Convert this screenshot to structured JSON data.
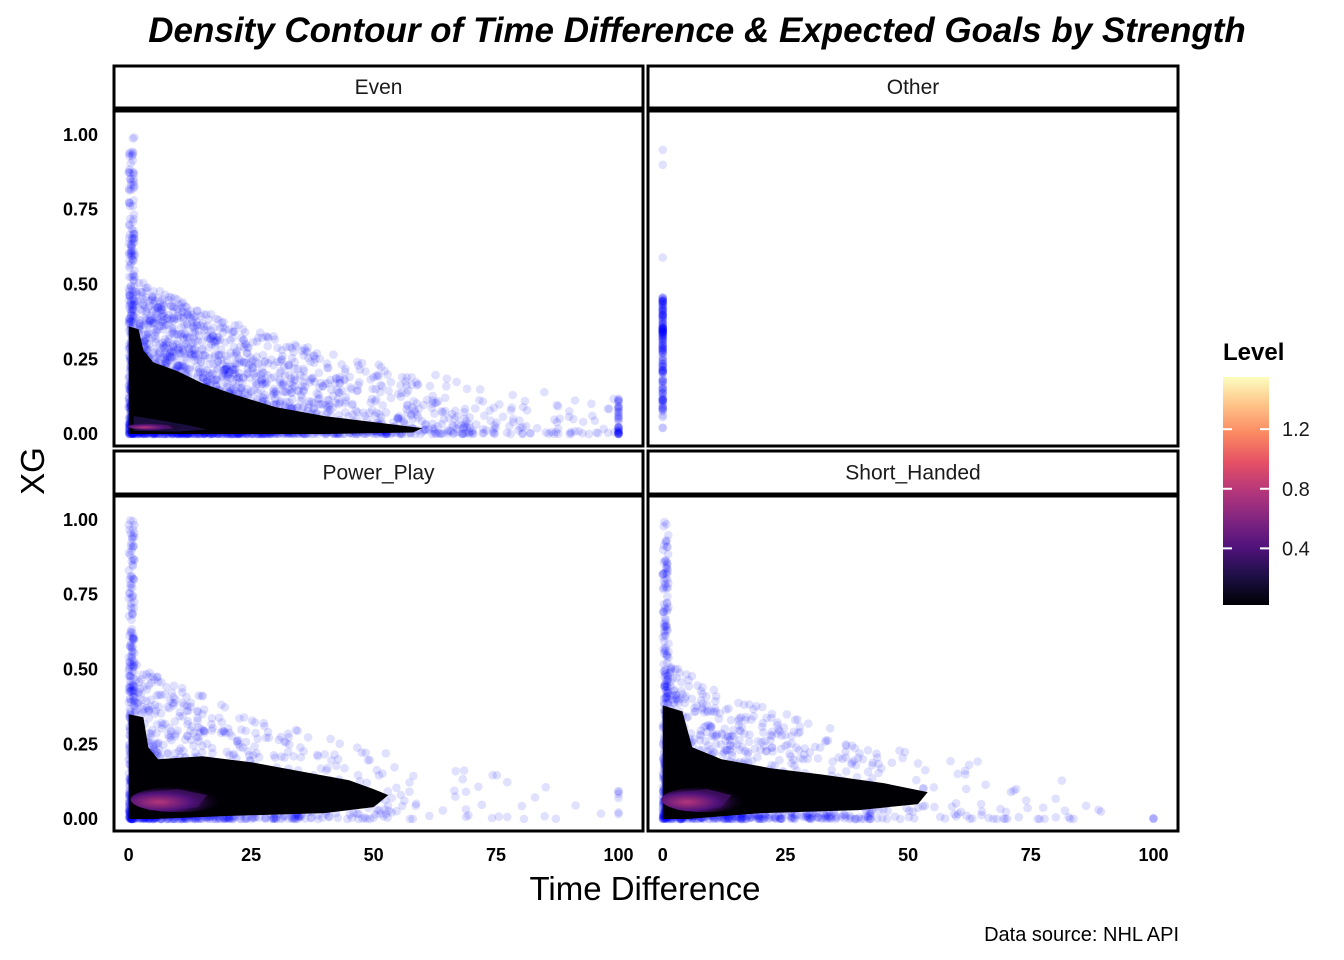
{
  "chart_data": {
    "type": "scatter",
    "title": "Density Contour of Time Difference & Expected Goals by Strength",
    "xlabel": "Time Difference",
    "ylabel": "XG",
    "caption": "Data source: NHL API",
    "xlim": [
      -3,
      105
    ],
    "ylim": [
      -0.04,
      1.08
    ],
    "x_ticks": [
      0,
      25,
      50,
      75,
      100
    ],
    "x_tick_labels": [
      "0",
      "25",
      "50",
      "75",
      "100"
    ],
    "y_ticks": [
      0,
      0.25,
      0.5,
      0.75,
      1.0
    ],
    "y_tick_labels": [
      "0.00",
      "0.25",
      "0.50",
      "0.75",
      "1.00"
    ],
    "point_color": "#0000ff",
    "point_opacity": 0.12,
    "panels": [
      {
        "name": "Even",
        "max_x": 100,
        "density_peak": 0.7,
        "contour_bands": [
          {
            "level": 0.02,
            "points": [
              [
                0,
                0.0
              ],
              [
                0,
                0.36
              ],
              [
                2,
                0.35
              ],
              [
                3,
                0.28
              ],
              [
                5,
                0.24
              ],
              [
                10,
                0.21
              ],
              [
                15,
                0.17
              ],
              [
                22,
                0.13
              ],
              [
                30,
                0.09
              ],
              [
                40,
                0.06
              ],
              [
                50,
                0.04
              ],
              [
                60,
                0.02
              ],
              [
                58,
                0.005
              ],
              [
                40,
                0.0
              ],
              [
                20,
                0.0
              ]
            ]
          },
          {
            "level": 0.06,
            "points": [
              [
                1,
                0.01
              ],
              [
                1,
                0.2
              ],
              [
                3,
                0.18
              ],
              [
                8,
                0.12
              ],
              [
                15,
                0.08
              ],
              [
                25,
                0.05
              ],
              [
                35,
                0.03
              ],
              [
                30,
                0.01
              ],
              [
                15,
                0.005
              ]
            ]
          },
          {
            "level": 0.3,
            "points": [
              [
                1,
                0.01
              ],
              [
                1,
                0.06
              ],
              [
                5,
                0.05
              ],
              [
                12,
                0.03
              ],
              [
                16,
                0.015
              ],
              [
                10,
                0.008
              ]
            ]
          },
          {
            "level": 0.6,
            "points": [
              [
                2,
                0.015
              ],
              [
                3,
                0.035
              ],
              [
                8,
                0.03
              ],
              [
                9,
                0.018
              ]
            ]
          }
        ]
      },
      {
        "name": "Other",
        "max_x": 1,
        "density_peak": 0,
        "contour_bands": []
      },
      {
        "name": "Power_Play",
        "max_x": 100,
        "density_peak": 0.55,
        "contour_bands": [
          {
            "level": 0.02,
            "points": [
              [
                0,
                0.0
              ],
              [
                0,
                0.35
              ],
              [
                3,
                0.34
              ],
              [
                4,
                0.24
              ],
              [
                6,
                0.2
              ],
              [
                15,
                0.21
              ],
              [
                25,
                0.19
              ],
              [
                35,
                0.16
              ],
              [
                45,
                0.13
              ],
              [
                50,
                0.1
              ],
              [
                53,
                0.08
              ],
              [
                50,
                0.04
              ],
              [
                40,
                0.02
              ],
              [
                20,
                0.01
              ],
              [
                5,
                0.0
              ]
            ]
          },
          {
            "level": 0.1,
            "points": [
              [
                2,
                0.01
              ],
              [
                2,
                0.16
              ],
              [
                10,
                0.15
              ],
              [
                25,
                0.13
              ],
              [
                38,
                0.1
              ],
              [
                40,
                0.06
              ],
              [
                30,
                0.03
              ],
              [
                15,
                0.02
              ]
            ]
          },
          {
            "level": 0.4,
            "points": [
              [
                4,
                0.03
              ],
              [
                4,
                0.09
              ],
              [
                10,
                0.1
              ],
              [
                16,
                0.08
              ],
              [
                14,
                0.04
              ],
              [
                8,
                0.03
              ]
            ]
          }
        ]
      },
      {
        "name": "Short_Handed",
        "max_x": 100,
        "density_peak": 0.45,
        "contour_bands": [
          {
            "level": 0.02,
            "points": [
              [
                0,
                0.0
              ],
              [
                0,
                0.38
              ],
              [
                4,
                0.36
              ],
              [
                6,
                0.24
              ],
              [
                12,
                0.2
              ],
              [
                22,
                0.17
              ],
              [
                32,
                0.15
              ],
              [
                45,
                0.12
              ],
              [
                54,
                0.09
              ],
              [
                52,
                0.05
              ],
              [
                40,
                0.03
              ],
              [
                20,
                0.02
              ],
              [
                5,
                0.0
              ]
            ]
          },
          {
            "level": 0.1,
            "points": [
              [
                2,
                0.01
              ],
              [
                2,
                0.18
              ],
              [
                10,
                0.15
              ],
              [
                22,
                0.12
              ],
              [
                35,
                0.09
              ],
              [
                36,
                0.05
              ],
              [
                25,
                0.03
              ],
              [
                12,
                0.02
              ]
            ]
          },
          {
            "level": 0.35,
            "points": [
              [
                3,
                0.03
              ],
              [
                3,
                0.09
              ],
              [
                9,
                0.1
              ],
              [
                14,
                0.08
              ],
              [
                12,
                0.04
              ],
              [
                7,
                0.03
              ]
            ]
          }
        ]
      }
    ],
    "legend": {
      "title": "Level",
      "ticks": [
        0.4,
        0.8,
        1.2
      ],
      "tick_labels": [
        "0.4",
        "0.8",
        "1.2"
      ],
      "range": [
        0.02,
        1.55
      ],
      "colors": [
        "#000004",
        "#1c1044",
        "#4f127b",
        "#812581",
        "#b5367a",
        "#e55064",
        "#fb8861",
        "#fec287",
        "#fcfdbf"
      ],
      "placement": "right"
    }
  }
}
